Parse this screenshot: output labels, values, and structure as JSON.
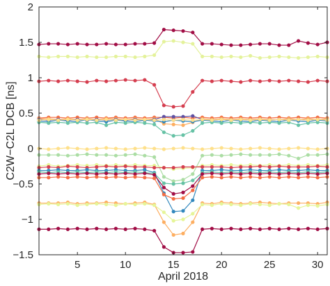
{
  "chart_data": {
    "type": "line",
    "title": "",
    "xlabel": "April 2018",
    "ylabel": "C2W−C2L DCB [ns]",
    "xlim": [
      1,
      31
    ],
    "ylim": [
      -1.5,
      2
    ],
    "xticks": [
      5,
      10,
      15,
      20,
      25,
      30
    ],
    "xtick_labels": [
      "5",
      "10",
      "15",
      "20",
      "25",
      "30"
    ],
    "yticks": [
      -1.5,
      -1,
      -0.5,
      0,
      0.5,
      1,
      1.5,
      2
    ],
    "ytick_labels": [
      "−1.5",
      "−1",
      "−0.5",
      "0",
      "0.5",
      "1",
      "1.5",
      "2"
    ],
    "grid": false,
    "x": [
      1,
      2,
      3,
      4,
      5,
      6,
      7,
      8,
      9,
      10,
      11,
      12,
      13,
      14,
      15,
      16,
      17,
      18,
      19,
      20,
      21,
      22,
      23,
      24,
      25,
      26,
      27,
      28,
      29,
      30,
      31
    ],
    "series": [
      {
        "color": "#a10d45",
        "values": [
          1.47,
          1.48,
          1.48,
          1.47,
          1.48,
          1.47,
          1.47,
          1.48,
          1.47,
          1.47,
          1.48,
          1.48,
          1.49,
          1.68,
          1.67,
          1.66,
          1.64,
          1.48,
          1.48,
          1.47,
          1.46,
          1.46,
          1.47,
          1.48,
          1.48,
          1.46,
          1.46,
          1.52,
          1.49,
          1.47,
          1.5
        ]
      },
      {
        "color": "#e4f29b",
        "values": [
          1.3,
          1.29,
          1.3,
          1.3,
          1.29,
          1.3,
          1.29,
          1.29,
          1.3,
          1.3,
          1.29,
          1.3,
          1.32,
          1.51,
          1.52,
          1.5,
          1.48,
          1.3,
          1.3,
          1.29,
          1.3,
          1.29,
          1.31,
          1.28,
          1.29,
          1.3,
          1.29,
          1.28,
          1.29,
          1.3,
          1.29
        ]
      },
      {
        "color": "#d53e4f",
        "values": [
          0.95,
          0.96,
          0.95,
          0.96,
          0.95,
          0.94,
          0.96,
          0.95,
          0.96,
          0.97,
          0.96,
          0.97,
          0.9,
          0.61,
          0.59,
          0.6,
          0.8,
          0.96,
          0.95,
          0.96,
          0.95,
          0.94,
          0.96,
          0.95,
          0.96,
          0.95,
          0.96,
          0.95,
          0.94,
          0.96,
          0.95
        ]
      },
      {
        "color": "#f46d43",
        "values": [
          0.43,
          0.44,
          0.44,
          0.43,
          0.44,
          0.43,
          0.44,
          0.43,
          0.44,
          0.43,
          0.44,
          0.43,
          0.44,
          0.44,
          0.43,
          0.44,
          0.43,
          0.44,
          0.43,
          0.44,
          0.43,
          0.44,
          0.43,
          0.44,
          0.43,
          0.44,
          0.43,
          0.44,
          0.43,
          0.44,
          0.43
        ]
      },
      {
        "color": "#fdae61",
        "values": [
          0.42,
          0.42,
          0.41,
          0.42,
          0.41,
          0.42,
          0.41,
          0.42,
          0.42,
          0.41,
          0.42,
          0.41,
          0.42,
          0.35,
          0.34,
          0.33,
          0.37,
          0.42,
          0.41,
          0.42,
          0.41,
          0.42,
          0.41,
          0.42,
          0.41,
          0.41,
          0.42,
          0.41,
          0.42,
          0.41,
          0.42
        ]
      },
      {
        "color": "#5e4fa2",
        "values": [
          0.41,
          0.4,
          0.41,
          0.4,
          0.41,
          0.4,
          0.41,
          0.4,
          0.41,
          0.4,
          0.41,
          0.4,
          0.41,
          0.45,
          0.45,
          0.45,
          0.46,
          0.41,
          0.4,
          0.41,
          0.4,
          0.41,
          0.4,
          0.41,
          0.4,
          0.41,
          0.4,
          0.41,
          0.4,
          0.41,
          0.4
        ]
      },
      {
        "color": "#3288bd",
        "values": [
          0.39,
          0.38,
          0.4,
          0.39,
          0.38,
          0.41,
          0.39,
          0.38,
          0.4,
          0.39,
          0.38,
          0.4,
          0.39,
          0.38,
          0.4,
          0.39,
          0.38,
          0.4,
          0.39,
          0.38,
          0.4,
          0.39,
          0.38,
          0.4,
          0.39,
          0.38,
          0.4,
          0.39,
          0.38,
          0.4,
          0.39
        ]
      },
      {
        "color": "#66c2a5",
        "values": [
          0.37,
          0.36,
          0.37,
          0.36,
          0.37,
          0.36,
          0.37,
          0.33,
          0.37,
          0.36,
          0.37,
          0.36,
          0.34,
          0.23,
          0.18,
          0.19,
          0.25,
          0.36,
          0.37,
          0.36,
          0.37,
          0.36,
          0.37,
          0.36,
          0.37,
          0.36,
          0.37,
          0.33,
          0.36,
          0.37,
          0.36
        ]
      },
      {
        "color": "#fee08b",
        "values": [
          0.4,
          0.41,
          0.4,
          0.41,
          0.4,
          0.41,
          0.4,
          0.41,
          0.4,
          0.41,
          0.4,
          0.41,
          0.4,
          0.41,
          0.4,
          0.41,
          0.4,
          0.41,
          0.4,
          0.41,
          0.4,
          0.41,
          0.4,
          0.41,
          0.4,
          0.41,
          0.4,
          0.41,
          0.4,
          0.41,
          0.4
        ]
      },
      {
        "color": "#fee08b",
        "values": [
          0.0,
          -0.01,
          0.0,
          0.01,
          0.0,
          -0.01,
          0.0,
          0.01,
          0.0,
          -0.01,
          0.0,
          0.01,
          0.0,
          -0.01,
          0.0,
          0.01,
          0.0,
          -0.01,
          0.0,
          0.01,
          0.0,
          -0.01,
          0.0,
          0.01,
          0.0,
          -0.01,
          0.0,
          0.01,
          0.0,
          -0.01,
          0.0
        ]
      },
      {
        "color": "#abdda4",
        "values": [
          -0.09,
          -0.09,
          -0.09,
          -0.1,
          -0.09,
          -0.08,
          -0.09,
          -0.09,
          -0.1,
          -0.09,
          -0.08,
          -0.1,
          -0.12,
          -0.4,
          -0.46,
          -0.44,
          -0.36,
          -0.1,
          -0.09,
          -0.1,
          -0.09,
          -0.08,
          -0.09,
          -0.09,
          -0.09,
          -0.08,
          -0.1,
          -0.14,
          -0.09,
          -0.09,
          -0.08
        ]
      },
      {
        "color": "#e6f598",
        "values": [
          -0.25,
          -0.23,
          -0.25,
          -0.24,
          -0.23,
          -0.24,
          -0.23,
          -0.24,
          -0.23,
          -0.24,
          -0.23,
          -0.24,
          -0.24,
          -0.27,
          -0.29,
          -0.28,
          -0.27,
          -0.24,
          -0.23,
          -0.24,
          -0.23,
          -0.24,
          -0.23,
          -0.24,
          -0.23,
          -0.24,
          -0.23,
          -0.24,
          -0.23,
          -0.24,
          -0.23
        ]
      },
      {
        "color": "#d53e4f",
        "values": [
          -0.27,
          -0.26,
          -0.27,
          -0.25,
          -0.26,
          -0.27,
          -0.26,
          -0.25,
          -0.26,
          -0.25,
          -0.26,
          -0.26,
          -0.27,
          -0.27,
          -0.27,
          -0.26,
          -0.26,
          -0.26,
          -0.26,
          -0.26,
          -0.27,
          -0.26,
          -0.26,
          -0.25,
          -0.26,
          -0.25,
          -0.26,
          -0.26,
          -0.26,
          -0.25,
          -0.26
        ]
      },
      {
        "color": "#3288bd",
        "values": [
          -0.31,
          -0.31,
          -0.3,
          -0.31,
          -0.31,
          -0.3,
          -0.31,
          -0.31,
          -0.3,
          -0.31,
          -0.31,
          -0.3,
          -0.34,
          -0.63,
          -0.89,
          -0.88,
          -0.73,
          -0.31,
          -0.31,
          -0.3,
          -0.31,
          -0.31,
          -0.3,
          -0.31,
          -0.31,
          -0.3,
          -0.31,
          -0.31,
          -0.3,
          -0.31,
          -0.31
        ]
      },
      {
        "color": "#66c2a5",
        "values": [
          -0.33,
          -0.34,
          -0.33,
          -0.34,
          -0.33,
          -0.34,
          -0.33,
          -0.34,
          -0.33,
          -0.34,
          -0.33,
          -0.34,
          -0.35,
          -0.49,
          -0.5,
          -0.49,
          -0.45,
          -0.34,
          -0.33,
          -0.34,
          -0.33,
          -0.34,
          -0.33,
          -0.34,
          -0.33,
          -0.34,
          -0.33,
          -0.34,
          -0.33,
          -0.34,
          -0.33
        ]
      },
      {
        "color": "#a10d45",
        "values": [
          -0.36,
          -0.35,
          -0.36,
          -0.35,
          -0.36,
          -0.35,
          -0.36,
          -0.35,
          -0.36,
          -0.35,
          -0.36,
          -0.35,
          -0.37,
          -0.55,
          -0.64,
          -0.62,
          -0.53,
          -0.36,
          -0.35,
          -0.36,
          -0.35,
          -0.36,
          -0.35,
          -0.36,
          -0.35,
          -0.36,
          -0.35,
          -0.36,
          -0.35,
          -0.36,
          -0.35
        ]
      },
      {
        "color": "#f46d43",
        "values": [
          -0.41,
          -0.41,
          -0.4,
          -0.41,
          -0.4,
          -0.41,
          -0.4,
          -0.41,
          -0.4,
          -0.41,
          -0.4,
          -0.41,
          -0.42,
          -0.65,
          -0.71,
          -0.7,
          -0.59,
          -0.41,
          -0.4,
          -0.41,
          -0.4,
          -0.41,
          -0.4,
          -0.41,
          -0.4,
          -0.41,
          -0.4,
          -0.41,
          -0.4,
          -0.41,
          -0.4
        ]
      },
      {
        "color": "#fdae61",
        "values": [
          -0.77,
          -0.77,
          -0.77,
          -0.76,
          -0.78,
          -0.77,
          -0.77,
          -0.76,
          -0.77,
          -0.78,
          -0.77,
          -0.76,
          -0.79,
          -1.04,
          -1.22,
          -1.2,
          -1.04,
          -0.77,
          -0.78,
          -0.76,
          -0.77,
          -0.78,
          -0.77,
          -0.76,
          -0.77,
          -0.78,
          -0.77,
          -0.77,
          -0.77,
          -0.78,
          -0.76
        ]
      },
      {
        "color": "#e6f598",
        "values": [
          -0.79,
          -0.78,
          -0.79,
          -0.78,
          -0.8,
          -0.79,
          -0.78,
          -0.79,
          -0.8,
          -0.78,
          -0.79,
          -0.78,
          -0.8,
          -0.9,
          -1.02,
          -1.0,
          -0.92,
          -0.79,
          -0.8,
          -0.78,
          -0.79,
          -0.8,
          -0.78,
          -0.79,
          -0.8,
          -0.78,
          -0.79,
          -0.84,
          -0.8,
          -0.81,
          -0.79
        ]
      },
      {
        "color": "#a10d45",
        "values": [
          -1.14,
          -1.14,
          -1.13,
          -1.14,
          -1.13,
          -1.14,
          -1.13,
          -1.14,
          -1.13,
          -1.14,
          -1.13,
          -1.14,
          -1.16,
          -1.39,
          -1.47,
          -1.47,
          -1.46,
          -1.14,
          -1.13,
          -1.14,
          -1.13,
          -1.14,
          -1.13,
          -1.14,
          -1.13,
          -1.14,
          -1.13,
          -1.14,
          -1.13,
          -1.14,
          -1.13
        ]
      }
    ]
  }
}
